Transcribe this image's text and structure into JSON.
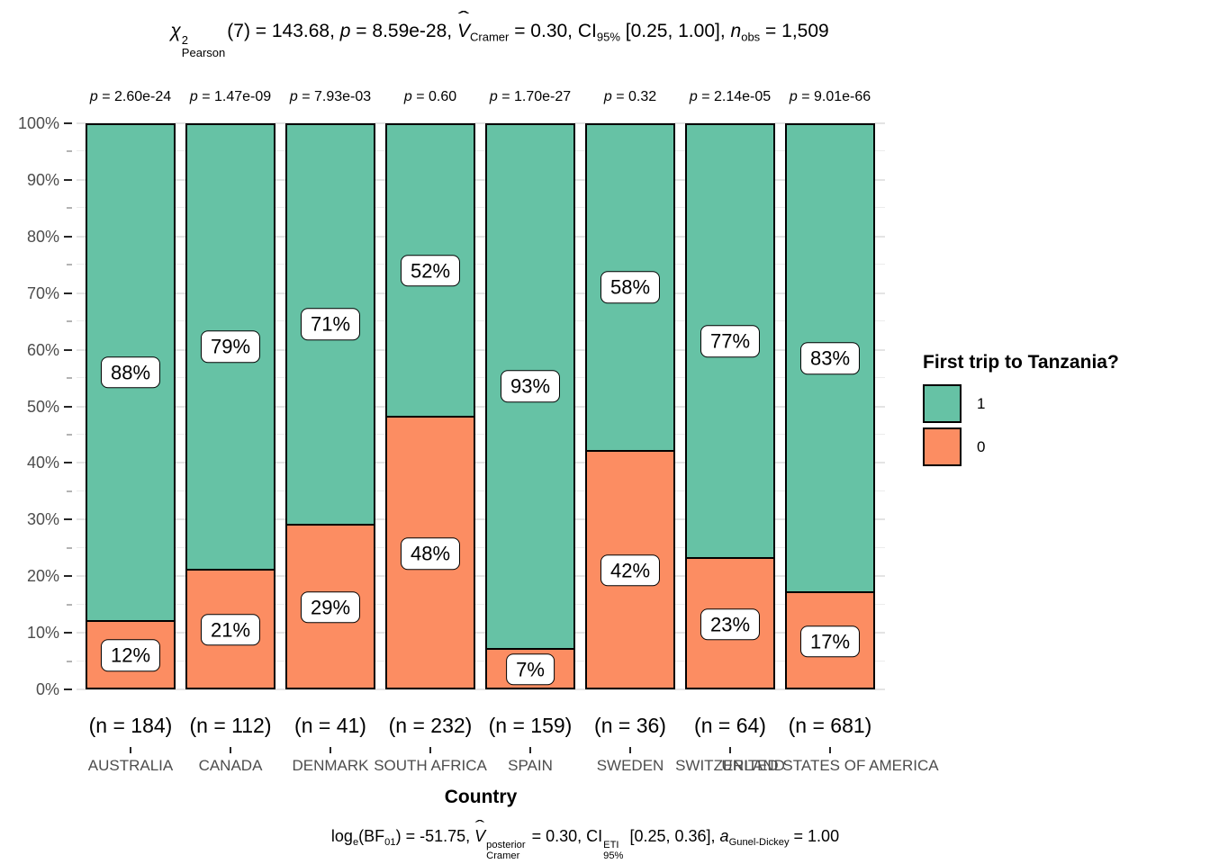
{
  "chart_data": {
    "type": "bar",
    "stacked": true,
    "units": "percent",
    "ylim": [
      0,
      100
    ],
    "grid": true,
    "title_segments": [
      {
        "t": "χ",
        "i": true
      },
      {
        "stack": {
          "top": "2",
          "bot": "Pearson"
        }
      },
      {
        "t": "(7) = 143.68, "
      },
      {
        "t": "p",
        "i": true
      },
      {
        "t": " = 8.59e-28, "
      },
      {
        "t": "V",
        "i": true,
        "hat": "ˆ"
      },
      {
        "t": "Cramer",
        "script": "sub"
      },
      {
        "t": " = 0.30, CI"
      },
      {
        "t": "95%",
        "script": "sub"
      },
      {
        "t": " [0.25, 1.00], "
      },
      {
        "t": "n",
        "i": true
      },
      {
        "t": "obs",
        "script": "sub"
      },
      {
        "t": " = 1,509"
      }
    ],
    "caption_segments": [
      {
        "t": "log"
      },
      {
        "t": "e",
        "script": "sub"
      },
      {
        "t": "(BF"
      },
      {
        "t": "01",
        "script": "sub"
      },
      {
        "t": ") = -51.75, "
      },
      {
        "t": "V",
        "i": true,
        "hat": "ˆ"
      },
      {
        "stack": {
          "top": "posterior",
          "bot": "Cramer"
        }
      },
      {
        "t": " = 0.30, CI"
      },
      {
        "stack": {
          "top": "ETI",
          "bot": "95%"
        }
      },
      {
        "t": " [0.25, 0.36], "
      },
      {
        "t": "a",
        "i": true
      },
      {
        "t": "Gunel-Dickey",
        "script": "sub"
      },
      {
        "t": " = 1.00"
      }
    ],
    "categories": [
      "AUSTRALIA",
      "CANADA",
      "DENMARK",
      "SOUTH AFRICA",
      "SPAIN",
      "SWEDEN",
      "SWITZERLAND",
      "UNITED STATES OF AMERICA"
    ],
    "series": [
      {
        "name": "1",
        "color": "#66C2A5",
        "values": [
          88,
          79,
          71,
          52,
          93,
          58,
          77,
          83
        ],
        "labels": [
          "88%",
          "79%",
          "71%",
          "52%",
          "93%",
          "58%",
          "77%",
          "83%"
        ]
      },
      {
        "name": "0",
        "color": "#FC8D62",
        "values": [
          12,
          21,
          29,
          48,
          7,
          42,
          23,
          17
        ],
        "labels": [
          "12%",
          "21%",
          "29%",
          "48%",
          "7%",
          "42%",
          "23%",
          "17%"
        ]
      }
    ],
    "sample_sizes": [
      "(n = 184)",
      "(n = 112)",
      "(n = 41)",
      "(n = 232)",
      "(n = 159)",
      "(n = 36)",
      "(n = 64)",
      "(n = 681)"
    ],
    "p_label": "p",
    "equals": " = ",
    "p_values": [
      "2.60e-24",
      "1.47e-09",
      "7.93e-03",
      "0.60",
      "1.70e-27",
      "0.32",
      "2.14e-05",
      "9.01e-66"
    ],
    "xlabel": "Country",
    "y_ticks": [
      "0%",
      "10%",
      "20%",
      "30%",
      "40%",
      "50%",
      "60%",
      "70%",
      "80%",
      "90%",
      "100%"
    ],
    "legend": {
      "title": "First trip to Tanzania?",
      "position": "right",
      "entries": [
        {
          "label": "1",
          "color": "#66C2A5"
        },
        {
          "label": "0",
          "color": "#FC8D62"
        }
      ]
    }
  }
}
